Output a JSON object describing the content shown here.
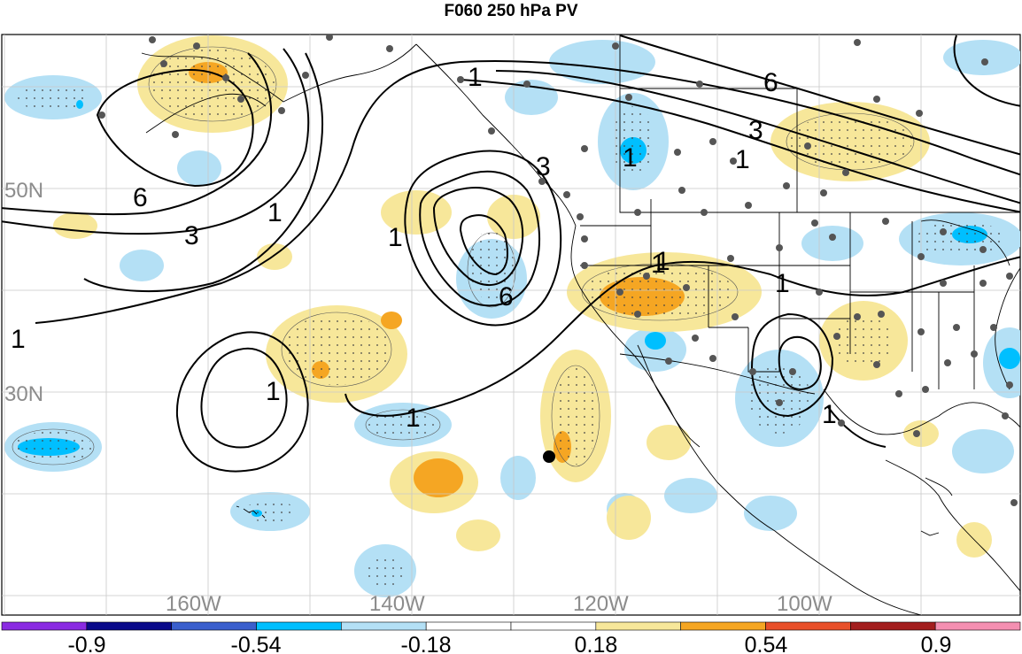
{
  "title": "F060 250 hPa PV",
  "map": {
    "lon_labels": [
      "160W",
      "140W",
      "120W",
      "100W"
    ],
    "lat_labels": [
      "50N",
      "30N"
    ],
    "contour_labels": [
      "1",
      "6",
      "3",
      "1",
      "1",
      "3",
      "1",
      "6",
      "1",
      "1",
      "1",
      "1",
      "6",
      "3",
      "1",
      "1",
      "1",
      "1"
    ],
    "line_color": "#000000",
    "station_color": "#555555",
    "grid_color": "#c8c8c8",
    "label_color": "#8c8c8c"
  },
  "colorbar": {
    "labels": [
      "-0.9",
      "-0.54",
      "-0.18",
      "0.18",
      "0.54",
      "0.9"
    ],
    "colors": [
      "#8a2be2",
      "#0a0a8a",
      "#3a5fcd",
      "#00bfff",
      "#b4e0f5",
      "#ffffff",
      "#ffffff",
      "#f7e79a",
      "#f5a623",
      "#e8502a",
      "#a31e1e",
      "#f48fb1"
    ]
  }
}
